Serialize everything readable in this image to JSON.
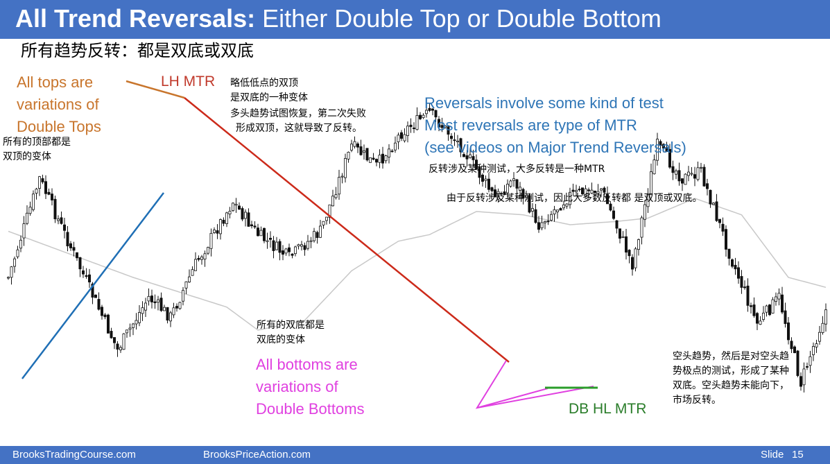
{
  "header": {
    "title_bold": "All Trend Reversals:",
    "title_rest": " Either Double Top or Double Bottom",
    "subtitle_cn": "所有趋势反转：都是双底或双底"
  },
  "annotations": {
    "tops_en": [
      "All tops are",
      "variations of",
      "Double Tops"
    ],
    "tops_cn": [
      "所有的顶部都是",
      "双顶的变体"
    ],
    "lh_mtr": "LH MTR",
    "lh_cn": [
      "略低低点的双顶",
      "是双底的一种变体",
      "多头趋势试图恢复，第二次失败",
      "形成双顶，这就导致了反转。"
    ],
    "reversals_en": [
      "Reversals involve some kind of test",
      "Most reversals are type of MTR",
      "(see videos on Major Trend Reversals)"
    ],
    "reversals_cn1": "反转涉及某种测试，大多反转是一种MTR",
    "reversals_cn2": "由于反转涉及某种测试，因此大多数反转都 是双顶或双底。",
    "bottoms_cn": [
      "所有的双底都是",
      "双底的变体"
    ],
    "bottoms_en": [
      "All bottoms are",
      "variations of",
      "Double Bottoms"
    ],
    "db_hl_mtr": "DB HL MTR",
    "right_cn": [
      "空头趋势，然后是对空头趋",
      "势极点的测试，形成了某种",
      "双底。空头趋势未能向下，",
      "市场反转。"
    ]
  },
  "footer": {
    "left": "BrooksTradingCourse.com",
    "center": "BrooksPriceAction.com",
    "slide_label": "Slide",
    "slide_number": "15"
  },
  "colors": {
    "title_bar": "#4472c4",
    "double_top_line": "#c8752c",
    "trend_line_up": "#1f6fb5",
    "trend_line_down": "#cc2a1a",
    "double_bottom_green": "#2a9d2a",
    "double_bottom_magenta": "#e040e0",
    "moving_average": "#c8c8c8"
  },
  "chart_data": {
    "type": "candlestick",
    "series": [
      {
        "name": "price",
        "anchors": [
          [
            0,
            60
          ],
          [
            10,
            30
          ],
          [
            22,
            55
          ],
          [
            35,
            82
          ],
          [
            45,
            66
          ],
          [
            52,
            72
          ],
          [
            60,
            56
          ],
          [
            72,
            37
          ],
          [
            80,
            47
          ],
          [
            90,
            54
          ],
          [
            100,
            46
          ],
          [
            110,
            20
          ],
          [
            118,
            26
          ],
          [
            126,
            16
          ],
          [
            135,
            10
          ],
          [
            145,
            20
          ],
          [
            156,
            36
          ],
          [
            162,
            30
          ],
          [
            170,
            44
          ],
          [
            180,
            35
          ],
          [
            190,
            33
          ],
          [
            200,
            56
          ],
          [
            208,
            20
          ],
          [
            216,
            30
          ],
          [
            222,
            28
          ],
          [
            232,
            55
          ],
          [
            240,
            74
          ],
          [
            247,
            66
          ],
          [
            254,
            92
          ],
          [
            262,
            70
          ]
        ]
      }
    ],
    "moving_average": [
      [
        0,
        46
      ],
      [
        40,
        60
      ],
      [
        70,
        69
      ],
      [
        80,
        76
      ],
      [
        95,
        73
      ],
      [
        110,
        58
      ],
      [
        125,
        49
      ],
      [
        135,
        47
      ],
      [
        150,
        40
      ],
      [
        165,
        41
      ],
      [
        180,
        44
      ],
      [
        195,
        43
      ],
      [
        205,
        42
      ],
      [
        220,
        36
      ],
      [
        235,
        41
      ],
      [
        250,
        60
      ],
      [
        262,
        63
      ]
    ],
    "x_range": [
      0,
      262
    ],
    "y_range": [
      0,
      100
    ]
  }
}
